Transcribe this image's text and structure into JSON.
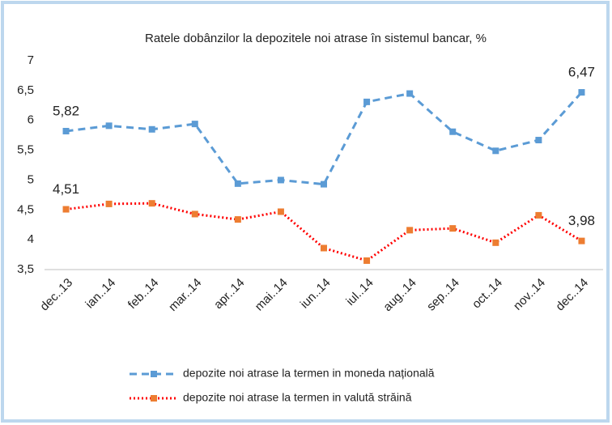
{
  "chart_data": {
    "type": "line",
    "title": "Ratele dobânzilor la depozitele noi atrase în sistemul bancar, %",
    "categories": [
      "dec..13",
      "ian..14",
      "feb..14",
      "mar..14",
      "apr..14",
      "mai..14",
      "iun..14",
      "iul..14",
      "aug..14",
      "sep..14",
      "oct..14",
      "nov..14",
      "dec..14"
    ],
    "series": [
      {
        "name": "depozite noi atrase la termen in moneda națională",
        "color": "#5b9bd5",
        "marker_color": "#5b9bd5",
        "dash": "dashed",
        "values": [
          5.82,
          5.91,
          5.85,
          5.94,
          4.94,
          5.0,
          4.93,
          6.31,
          6.45,
          5.81,
          5.49,
          5.67,
          6.47
        ],
        "value_labels": [
          "5,82",
          null,
          null,
          null,
          null,
          null,
          null,
          null,
          null,
          null,
          null,
          null,
          "6,47"
        ]
      },
      {
        "name": "depozite noi atrase la termen in valută străină",
        "color": "#ff0000",
        "marker_color": "#ed7d31",
        "dash": "dotted",
        "values": [
          4.51,
          4.6,
          4.61,
          4.43,
          4.34,
          4.47,
          3.86,
          3.65,
          4.16,
          4.19,
          3.95,
          4.41,
          3.98
        ],
        "value_labels": [
          "4,51",
          null,
          null,
          null,
          null,
          null,
          null,
          null,
          null,
          null,
          null,
          null,
          "3,98"
        ]
      }
    ],
    "ylim": [
      3.5,
      7
    ],
    "yticks": [
      {
        "value": 3.5,
        "label": "3,5"
      },
      4,
      {
        "value": 4.5,
        "label": "4,5"
      },
      5,
      {
        "value": 5.5,
        "label": "5,5"
      },
      6,
      {
        "value": 6.5,
        "label": "6,5"
      },
      7
    ],
    "grid": false,
    "legend": "bottom"
  }
}
